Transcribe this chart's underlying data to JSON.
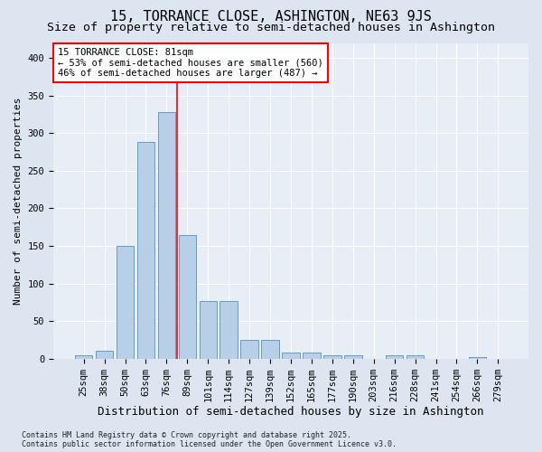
{
  "title": "15, TORRANCE CLOSE, ASHINGTON, NE63 9JS",
  "subtitle": "Size of property relative to semi-detached houses in Ashington",
  "xlabel": "Distribution of semi-detached houses by size in Ashington",
  "ylabel": "Number of semi-detached properties",
  "categories": [
    "25sqm",
    "38sqm",
    "50sqm",
    "63sqm",
    "76sqm",
    "89sqm",
    "101sqm",
    "114sqm",
    "127sqm",
    "139sqm",
    "152sqm",
    "165sqm",
    "177sqm",
    "190sqm",
    "203sqm",
    "216sqm",
    "228sqm",
    "241sqm",
    "254sqm",
    "266sqm",
    "279sqm"
  ],
  "values": [
    5,
    10,
    150,
    288,
    328,
    165,
    77,
    77,
    25,
    25,
    8,
    8,
    4,
    4,
    0,
    4,
    4,
    0,
    0,
    2,
    0
  ],
  "bar_color": "#b8cfe8",
  "bar_edgecolor": "#6699cc",
  "annotation_text": "15 TORRANCE CLOSE: 81sqm\n← 53% of semi-detached houses are smaller (560)\n46% of semi-detached houses are larger (487) →",
  "footer_text": "Contains HM Land Registry data © Crown copyright and database right 2025.\nContains public sector information licensed under the Open Government Licence v3.0.",
  "ylim": [
    0,
    420
  ],
  "bg_color": "#dde6f0",
  "plot_bg_color": "#e8eef6",
  "grid_color": "#ffffff",
  "title_fontsize": 11,
  "subtitle_fontsize": 9.5,
  "tick_fontsize": 7.5,
  "ylabel_fontsize": 8,
  "xlabel_fontsize": 9,
  "footer_fontsize": 6,
  "annotation_fontsize": 7.5
}
